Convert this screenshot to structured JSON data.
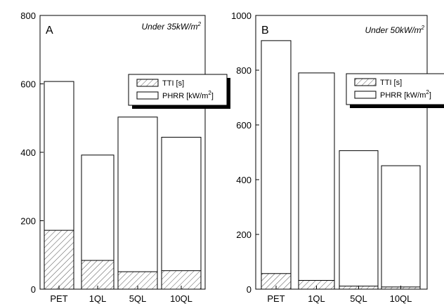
{
  "chart_data": [
    {
      "type": "bar",
      "panel_label": "A",
      "condition": "Under 35kW/m",
      "condition_sup": "2",
      "categories": [
        "PET",
        "1QL",
        "5QL",
        "10QL"
      ],
      "series": [
        {
          "name": "TTI [s]",
          "values": [
            172,
            84,
            51,
            54
          ],
          "pattern": "hatched"
        },
        {
          "name": "PHRR [kW/m",
          "name_sup": "2",
          "name_suffix": "]",
          "values": [
            607,
            392,
            503,
            444
          ],
          "pattern": "open"
        }
      ],
      "ylim": [
        0,
        800
      ],
      "yticks": [
        "0",
        "200",
        "400",
        "600",
        "800"
      ],
      "legend_position": "upper-right"
    },
    {
      "type": "bar",
      "panel_label": "B",
      "condition": "Under 50kW/m",
      "condition_sup": "2",
      "categories": [
        "PET",
        "1QL",
        "5QL",
        "10QL"
      ],
      "series": [
        {
          "name": "TTI [s]",
          "values": [
            57,
            32,
            11,
            8
          ],
          "pattern": "hatched"
        },
        {
          "name": "PHRR [kW/m",
          "name_sup": "2",
          "name_suffix": "]",
          "values": [
            908,
            790,
            506,
            451
          ],
          "pattern": "open"
        }
      ],
      "ylim": [
        0,
        1000
      ],
      "yticks": [
        "0",
        "200",
        "400",
        "600",
        "800",
        "1000"
      ],
      "legend_position": "upper-right"
    }
  ]
}
